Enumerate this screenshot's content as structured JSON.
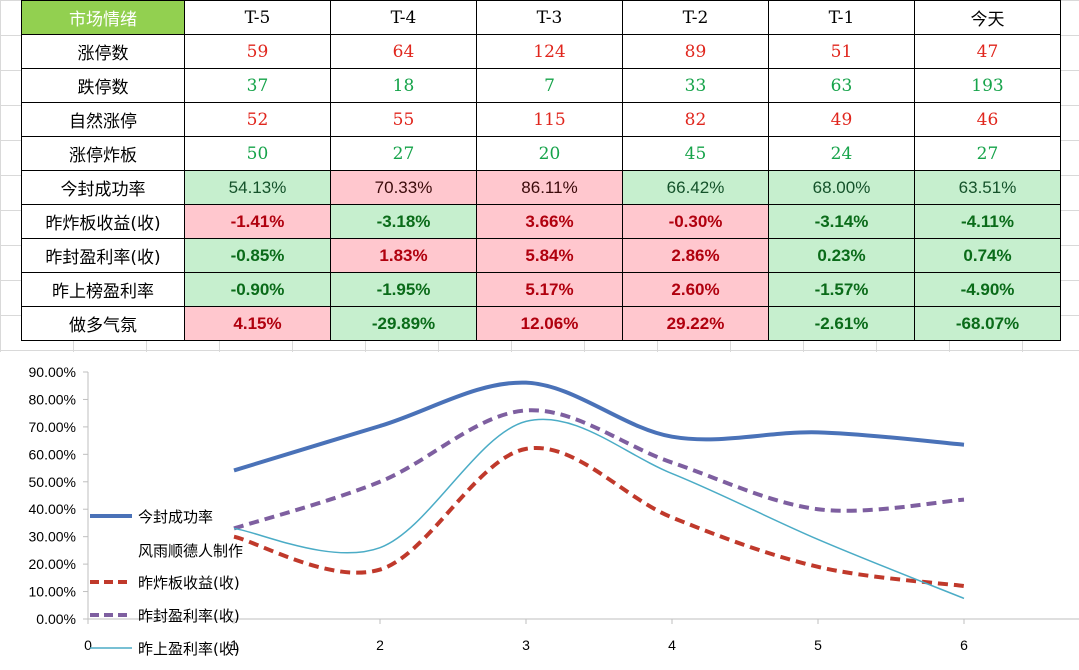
{
  "table": {
    "corner": "市场情绪",
    "columns": [
      "T-5",
      "T-4",
      "T-3",
      "T-2",
      "T-1",
      "今天"
    ],
    "rows": [
      {
        "label": "涨停数",
        "values": [
          "59",
          "64",
          "124",
          "89",
          "51",
          "47"
        ],
        "style": "red"
      },
      {
        "label": "跌停数",
        "values": [
          "37",
          "18",
          "7",
          "33",
          "63",
          "193"
        ],
        "style": "grn"
      },
      {
        "label": "自然涨停",
        "values": [
          "52",
          "55",
          "115",
          "82",
          "49",
          "46"
        ],
        "style": "red"
      },
      {
        "label": "涨停炸板",
        "values": [
          "50",
          "27",
          "20",
          "45",
          "24",
          "27"
        ],
        "style": "grn"
      },
      {
        "label": "今封成功率",
        "values": [
          "54.13%",
          "70.33%",
          "86.11%",
          "66.42%",
          "68.00%",
          "63.51%"
        ],
        "style": "pct",
        "fills": [
          "g",
          "r",
          "r",
          "g",
          "g",
          "g"
        ]
      },
      {
        "label": "昨炸板收益(收)",
        "values": [
          "-1.41%",
          "-3.18%",
          "3.66%",
          "-0.30%",
          "-3.14%",
          "-4.11%"
        ],
        "style": "bold",
        "fills": [
          "r",
          "g",
          "r",
          "r",
          "g",
          "g"
        ]
      },
      {
        "label": "昨封盈利率(收)",
        "values": [
          "-0.85%",
          "1.83%",
          "5.84%",
          "2.86%",
          "0.23%",
          "0.74%"
        ],
        "style": "bold",
        "fills": [
          "g",
          "r",
          "r",
          "r",
          "g",
          "g"
        ]
      },
      {
        "label": "昨上榜盈利率",
        "values": [
          "-0.90%",
          "-1.95%",
          "5.17%",
          "2.60%",
          "-1.57%",
          "-4.90%"
        ],
        "style": "bold",
        "fills": [
          "g",
          "g",
          "r",
          "r",
          "g",
          "g"
        ]
      },
      {
        "label": "做多气氛",
        "values": [
          "4.15%",
          "-29.89%",
          "12.06%",
          "29.22%",
          "-2.61%",
          "-68.07%"
        ],
        "style": "bold",
        "fills": [
          "r",
          "g",
          "r",
          "r",
          "g",
          "g"
        ]
      }
    ]
  },
  "chart_data": {
    "type": "line",
    "x": [
      1,
      2,
      3,
      4,
      5,
      6
    ],
    "xticks": [
      "0",
      "1",
      "2",
      "3",
      "4",
      "5",
      "6"
    ],
    "yticks": [
      "0.00%",
      "10.00%",
      "20.00%",
      "30.00%",
      "40.00%",
      "50.00%",
      "60.00%",
      "70.00%",
      "80.00%",
      "90.00%"
    ],
    "ylim": [
      0,
      90
    ],
    "xlim": [
      0,
      7
    ],
    "series": [
      {
        "name": "今封成功率",
        "values": [
          54.13,
          70.33,
          86.11,
          66.42,
          68.0,
          63.51
        ],
        "color": "#4a72b8",
        "dash": "solid",
        "width": 4
      },
      {
        "name": "昨炸板收益(收)",
        "values": [
          30,
          18,
          62,
          37,
          19,
          12
        ],
        "color": "#c0392b",
        "dash": "dashed",
        "width": 4
      },
      {
        "name": "昨封盈利率(收)",
        "values": [
          33,
          50,
          76,
          57,
          40,
          43.5
        ],
        "color": "#7e5fa0",
        "dash": "dashed",
        "width": 4
      },
      {
        "name": "昨上盈利率(收)",
        "values": [
          33,
          26,
          72,
          53,
          29,
          7.5
        ],
        "color": "#4bacc6",
        "dash": "solid",
        "width": 1.5
      }
    ],
    "annotation": "风雨顺德人制作"
  }
}
